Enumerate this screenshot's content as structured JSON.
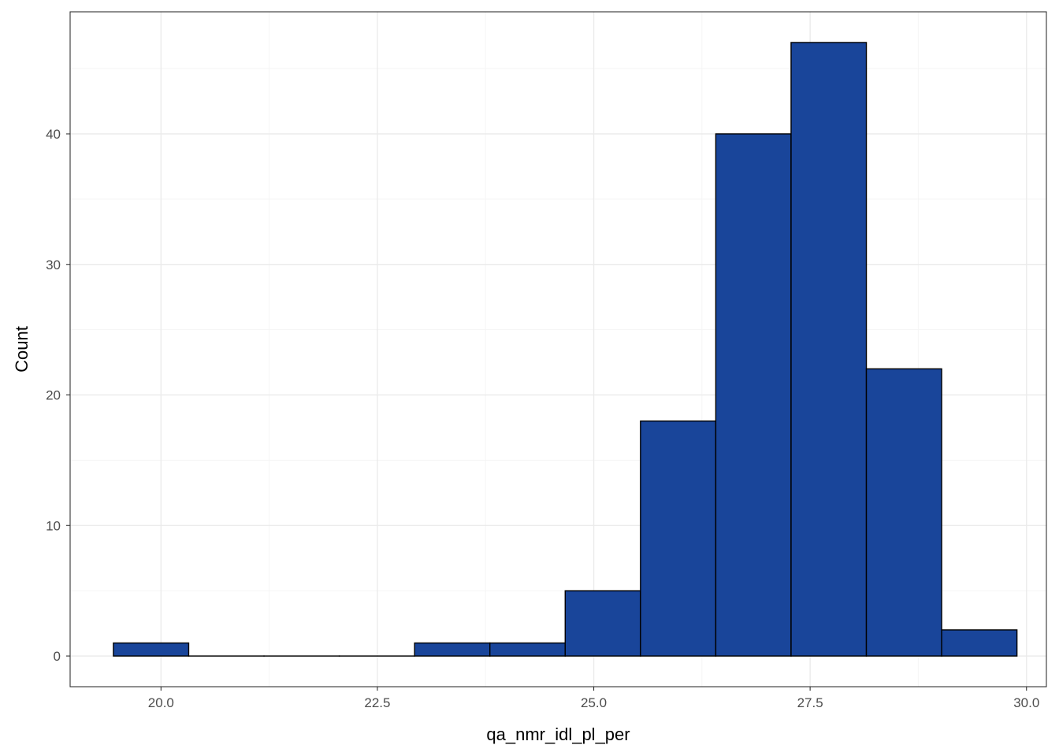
{
  "chart_data": {
    "type": "bar",
    "subtype": "histogram",
    "title": "",
    "xlabel": "qa_nmr_idl_pl_per",
    "ylabel": "Count",
    "bin_width": 0.87,
    "bins": [
      {
        "x0": 19.45,
        "x1": 20.32,
        "count": 1
      },
      {
        "x0": 20.32,
        "x1": 21.19,
        "count": 0
      },
      {
        "x0": 21.19,
        "x1": 22.06,
        "count": 0
      },
      {
        "x0": 22.06,
        "x1": 22.93,
        "count": 0
      },
      {
        "x0": 22.93,
        "x1": 23.8,
        "count": 1
      },
      {
        "x0": 23.8,
        "x1": 24.67,
        "count": 1
      },
      {
        "x0": 24.67,
        "x1": 25.54,
        "count": 5
      },
      {
        "x0": 25.54,
        "x1": 26.41,
        "count": 18
      },
      {
        "x0": 26.41,
        "x1": 27.28,
        "count": 40
      },
      {
        "x0": 27.28,
        "x1": 28.15,
        "count": 47
      },
      {
        "x0": 28.15,
        "x1": 29.02,
        "count": 22
      },
      {
        "x0": 29.02,
        "x1": 29.89,
        "count": 2
      }
    ],
    "xlim": [
      18.95,
      30.23
    ],
    "ylim": [
      -2.35,
      49.35
    ],
    "x_ticks": [
      20.0,
      22.5,
      25.0,
      27.5,
      30.0
    ],
    "x_tick_labels": [
      "20.0",
      "22.5",
      "25.0",
      "27.5",
      "30.0"
    ],
    "y_ticks": [
      0,
      10,
      20,
      30,
      40
    ],
    "y_tick_labels": [
      "0",
      "10",
      "20",
      "30",
      "40"
    ],
    "grid": true,
    "legend": "none",
    "colors": {
      "bar_fill": "#19459a",
      "bar_stroke": "#000000",
      "grid_major": "#ebebeb",
      "grid_minor": "#f5f5f5",
      "panel_border": "#333333",
      "tick_label": "#4d4d4d"
    }
  }
}
